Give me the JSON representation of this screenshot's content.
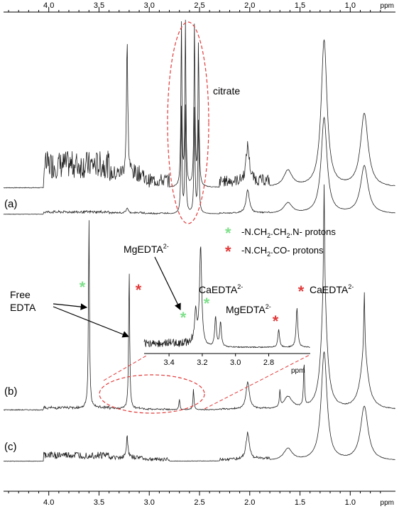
{
  "chart_data": {
    "type": "line",
    "xlabel": "",
    "x_unit": "ppm",
    "xlim": [
      4.45,
      0.55
    ],
    "reversed_x": true,
    "ticks": [
      "4.0",
      "3.5",
      "3.0",
      "2.5",
      "2.0",
      "1.5",
      "1.0"
    ],
    "tick_values": [
      4.0,
      3.5,
      3.0,
      2.5,
      2.0,
      1.5,
      1.0
    ],
    "annotations": {
      "citrate": "citrate",
      "free_edta_line1": "Free",
      "free_edta_line2": "EDTA",
      "mg_inset": {
        "base": "MgEDTA",
        "sup": "2-"
      },
      "ca_inset": {
        "base": "CaEDTA",
        "sup": "2-"
      },
      "mg_main": {
        "base": "MgEDTA",
        "sup": "2-"
      },
      "ca_main": {
        "base": "CaEDTA",
        "sup": "2-"
      }
    },
    "legend": [
      {
        "symbol": "*",
        "color": "#7ee08a",
        "parts": [
          "-N.CH",
          "2",
          ".CH",
          "2",
          ".N- protons"
        ]
      },
      {
        "symbol": "*",
        "color": "#e23a3a",
        "parts": [
          "-N.CH",
          "2",
          ".CO- protons"
        ]
      }
    ],
    "panels": [
      {
        "label": "(a)",
        "traces": 2
      },
      {
        "label": "(b)",
        "traces": 1
      },
      {
        "label": "(c)",
        "traces": 1
      }
    ],
    "inset": {
      "ticks": [
        "3.4",
        "3.2",
        "3.0",
        "2.8"
      ],
      "tick_values": [
        3.4,
        3.2,
        3.0,
        2.8
      ],
      "xlim": [
        3.55,
        2.55
      ],
      "unit": "ppm"
    },
    "peaks_b": [
      {
        "ppm": 3.6,
        "height": 0.92,
        "marker": "green"
      },
      {
        "ppm": 3.2,
        "height": 0.68,
        "marker": "red"
      },
      {
        "ppm": 2.7,
        "height": 0.05,
        "marker": "green"
      },
      {
        "ppm": 2.56,
        "height": 0.1,
        "marker": "green"
      },
      {
        "ppm": 1.7,
        "height": 0.08,
        "marker": "red"
      },
      {
        "ppm": 1.46,
        "height": 0.22,
        "marker": "red"
      },
      {
        "ppm": 1.26,
        "height": 0.55
      },
      {
        "ppm": 0.86,
        "height": 0.3
      }
    ],
    "colors": {
      "green_star": "#7ee08a",
      "red_star": "#e23a3a",
      "trace": "#222222",
      "dashed": "#e23a3a"
    }
  }
}
